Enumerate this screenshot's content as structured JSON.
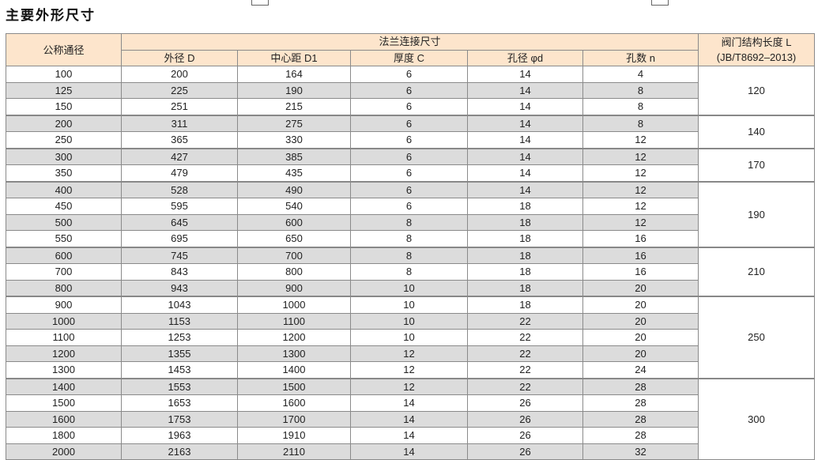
{
  "title": "主要外形尺寸",
  "headers": {
    "dn": "公称通径",
    "flange": "法兰连接尺寸",
    "D": "外径 D",
    "D1": "中心距 D1",
    "C": "厚度 C",
    "d": "孔径 φd",
    "n": "孔数 n",
    "L1": "阀门结构长度 L",
    "L2": "(JB/T8692–2013)"
  },
  "rows": [
    [
      "100",
      "200",
      "164",
      "6",
      "14",
      "4"
    ],
    [
      "125",
      "225",
      "190",
      "6",
      "14",
      "8"
    ],
    [
      "150",
      "251",
      "215",
      "6",
      "14",
      "8"
    ],
    [
      "200",
      "311",
      "275",
      "6",
      "14",
      "8"
    ],
    [
      "250",
      "365",
      "330",
      "6",
      "14",
      "12"
    ],
    [
      "300",
      "427",
      "385",
      "6",
      "14",
      "12"
    ],
    [
      "350",
      "479",
      "435",
      "6",
      "14",
      "12"
    ],
    [
      "400",
      "528",
      "490",
      "6",
      "14",
      "12"
    ],
    [
      "450",
      "595",
      "540",
      "6",
      "18",
      "12"
    ],
    [
      "500",
      "645",
      "600",
      "8",
      "18",
      "12"
    ],
    [
      "550",
      "695",
      "650",
      "8",
      "18",
      "16"
    ],
    [
      "600",
      "745",
      "700",
      "8",
      "18",
      "16"
    ],
    [
      "700",
      "843",
      "800",
      "8",
      "18",
      "16"
    ],
    [
      "800",
      "943",
      "900",
      "10",
      "18",
      "20"
    ],
    [
      "900",
      "1043",
      "1000",
      "10",
      "18",
      "20"
    ],
    [
      "1000",
      "1153",
      "1100",
      "10",
      "22",
      "20"
    ],
    [
      "1100",
      "1253",
      "1200",
      "10",
      "22",
      "20"
    ],
    [
      "1200",
      "1355",
      "1300",
      "12",
      "22",
      "20"
    ],
    [
      "1300",
      "1453",
      "1400",
      "12",
      "22",
      "24"
    ],
    [
      "1400",
      "1553",
      "1500",
      "12",
      "22",
      "28"
    ],
    [
      "1500",
      "1653",
      "1600",
      "14",
      "26",
      "28"
    ],
    [
      "1600",
      "1753",
      "1700",
      "14",
      "26",
      "28"
    ],
    [
      "1800",
      "1963",
      "1910",
      "14",
      "26",
      "28"
    ],
    [
      "2000",
      "2163",
      "2110",
      "14",
      "26",
      "32"
    ]
  ],
  "L_groups": [
    {
      "value": "120",
      "span": 3
    },
    {
      "value": "140",
      "span": 2
    },
    {
      "value": "170",
      "span": 2
    },
    {
      "value": "190",
      "span": 4
    },
    {
      "value": "210",
      "span": 3
    },
    {
      "value": "250",
      "span": 5
    },
    {
      "value": "300",
      "span": 5
    }
  ],
  "colors": {
    "header_bg": "#fde5cc",
    "stripe_bg": "#dcdcdc",
    "border": "#8a8a8a"
  }
}
